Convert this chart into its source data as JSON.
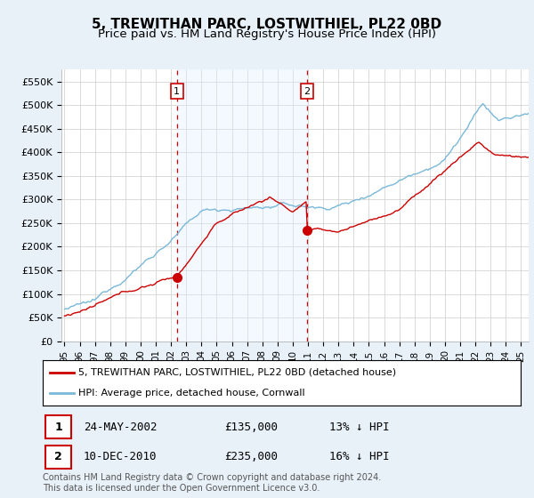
{
  "title": "5, TREWITHAN PARC, LOSTWITHIEL, PL22 0BD",
  "subtitle": "Price paid vs. HM Land Registry's House Price Index (HPI)",
  "ylabel_ticks": [
    "£0",
    "£50K",
    "£100K",
    "£150K",
    "£200K",
    "£250K",
    "£300K",
    "£350K",
    "£400K",
    "£450K",
    "£500K",
    "£550K"
  ],
  "ytick_values": [
    0,
    50000,
    100000,
    150000,
    200000,
    250000,
    300000,
    350000,
    400000,
    450000,
    500000,
    550000
  ],
  "ylim": [
    0,
    575000
  ],
  "xlim_start": 1994.8,
  "xlim_end": 2025.5,
  "transaction1_date": 2002.39,
  "transaction1_price": 135000,
  "transaction1_label": "1",
  "transaction1_display": "24-MAY-2002",
  "transaction1_amount": "£135,000",
  "transaction1_info": "13% ↓ HPI",
  "transaction2_date": 2010.94,
  "transaction2_price": 235000,
  "transaction2_label": "2",
  "transaction2_display": "10-DEC-2010",
  "transaction2_amount": "£235,000",
  "transaction2_info": "16% ↓ HPI",
  "hpi_color": "#7ab8d8",
  "price_color": "#cc0000",
  "vline_color": "#cc0000",
  "shade_color": "#ddeeff",
  "background_color": "#e8f0f8",
  "plot_bg_color": "#ffffff",
  "legend_label_price": "5, TREWITHAN PARC, LOSTWITHIEL, PL22 0BD (detached house)",
  "legend_label_hpi": "HPI: Average price, detached house, Cornwall",
  "footer_text": "Contains HM Land Registry data © Crown copyright and database right 2024.\nThis data is licensed under the Open Government Licence v3.0.",
  "title_fontsize": 11,
  "subtitle_fontsize": 9.5
}
